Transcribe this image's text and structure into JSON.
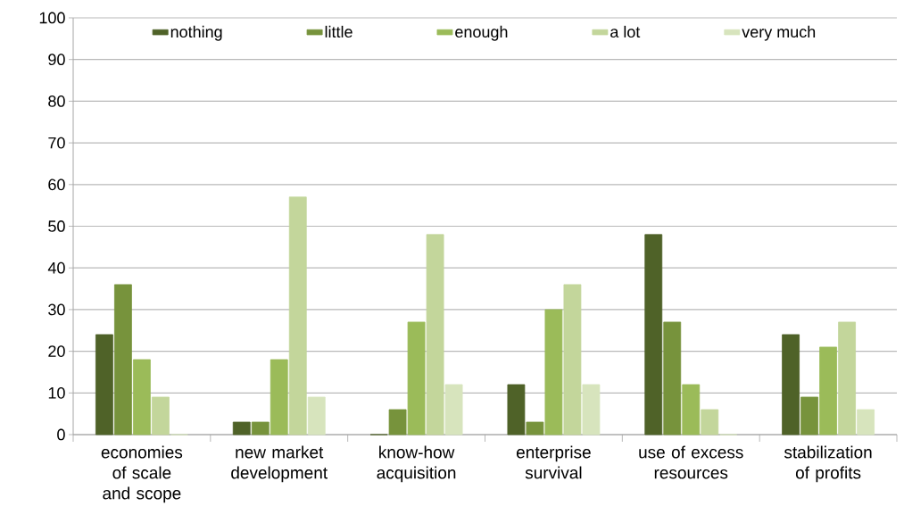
{
  "chart_data": {
    "type": "bar",
    "categories": [
      "economies of scale and scope",
      "new market development",
      "know-how acquisition",
      "enterprise survival",
      "use of excess resources",
      "stabilization of profits"
    ],
    "series": [
      {
        "name": "nothing",
        "color": "#4f6228",
        "values": [
          24,
          3,
          0,
          12,
          48,
          24
        ]
      },
      {
        "name": "little",
        "color": "#77933c",
        "values": [
          36,
          3,
          6,
          3,
          27,
          9
        ]
      },
      {
        "name": "enough",
        "color": "#9bbb59",
        "values": [
          18,
          18,
          27,
          30,
          12,
          21
        ]
      },
      {
        "name": "a lot",
        "color": "#c3d69b",
        "values": [
          9,
          57,
          48,
          36,
          6,
          27
        ]
      },
      {
        "name": "very much",
        "color": "#d7e4bd",
        "values": [
          0,
          9,
          12,
          12,
          0,
          6
        ]
      }
    ],
    "ylim": [
      0,
      100
    ],
    "yticks": [
      0,
      10,
      20,
      30,
      40,
      50,
      60,
      70,
      80,
      90,
      100
    ],
    "grid": "y",
    "legend": "top"
  }
}
